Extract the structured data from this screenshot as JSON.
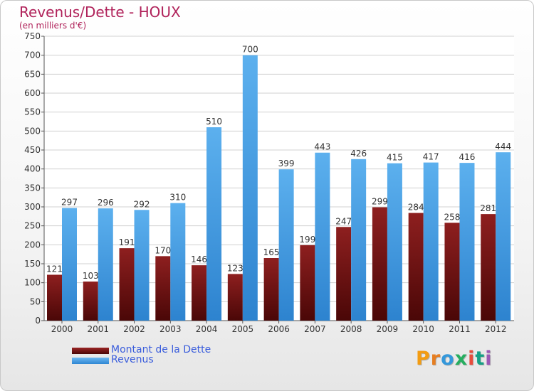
{
  "chart_data": {
    "type": "bar",
    "title": "Revenus/Dette - HOUX",
    "subtitle": "(en milliers d'€)",
    "categories": [
      "2000",
      "2001",
      "2002",
      "2003",
      "2004",
      "2005",
      "2006",
      "2007",
      "2008",
      "2009",
      "2010",
      "2011",
      "2012"
    ],
    "series": [
      {
        "name": "Montant de la Dette",
        "color": "#7a1515",
        "values": [
          121,
          103,
          191,
          170,
          146,
          123,
          165,
          199,
          247,
          299,
          284,
          258,
          281
        ]
      },
      {
        "name": "Revenus",
        "color": "#4da3e8",
        "values": [
          297,
          296,
          292,
          310,
          510,
          700,
          399,
          443,
          426,
          415,
          417,
          416,
          444
        ]
      }
    ],
    "ylim": [
      0,
      750
    ],
    "ytick_step": 50,
    "grid": true,
    "legend_position": "bottom-left"
  },
  "branding": {
    "logo_text": "Proxiti"
  }
}
